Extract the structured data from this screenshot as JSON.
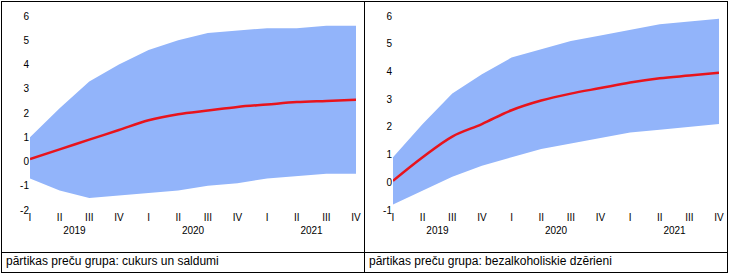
{
  "chart_data": [
    {
      "type": "line",
      "title": "pārtikas preču grupa: cukurs un saldumi",
      "categories": [
        "I",
        "II",
        "III",
        "IV",
        "I",
        "II",
        "III",
        "IV",
        "I",
        "II",
        "III",
        "IV"
      ],
      "years": [
        {
          "label": "2019",
          "count": 4
        },
        {
          "label": "2020",
          "count": 4
        },
        {
          "label": "2021",
          "count": 4
        }
      ],
      "ylim": [
        -2,
        6
      ],
      "yticks": [
        -2,
        -1,
        0,
        1,
        2,
        3,
        4,
        5,
        6
      ],
      "grid": false,
      "series": [
        {
          "type": "band",
          "color": "#92b4fa",
          "lower": [
            -0.7,
            -1.2,
            -1.5,
            -1.4,
            -1.3,
            -1.2,
            -1.0,
            -0.9,
            -0.7,
            -0.6,
            -0.5,
            -0.5
          ],
          "upper": [
            1.0,
            2.2,
            3.3,
            4.0,
            4.6,
            5.0,
            5.3,
            5.4,
            5.5,
            5.5,
            5.6,
            5.6
          ]
        },
        {
          "type": "line",
          "color": "#e8141c",
          "values": [
            0.1,
            0.5,
            0.9,
            1.3,
            1.7,
            1.95,
            2.1,
            2.25,
            2.35,
            2.45,
            2.5,
            2.55
          ]
        }
      ]
    },
    {
      "type": "line",
      "title": "pārtikas preču grupa: bezalkoholiskie dzērieni",
      "categories": [
        "I",
        "II",
        "III",
        "IV",
        "I",
        "II",
        "III",
        "IV",
        "I",
        "II",
        "III",
        "IV"
      ],
      "years": [
        {
          "label": "2019",
          "count": 4
        },
        {
          "label": "2020",
          "count": 4
        },
        {
          "label": "2021",
          "count": 4
        }
      ],
      "ylim": [
        -1,
        6
      ],
      "yticks": [
        -1,
        0,
        1,
        2,
        3,
        4,
        5,
        6
      ],
      "grid": false,
      "series": [
        {
          "type": "band",
          "color": "#92b4fa",
          "lower": [
            -0.8,
            -0.3,
            0.2,
            0.6,
            0.9,
            1.2,
            1.4,
            1.6,
            1.8,
            1.9,
            2.0,
            2.1
          ],
          "upper": [
            0.9,
            2.1,
            3.2,
            3.9,
            4.5,
            4.8,
            5.1,
            5.3,
            5.5,
            5.7,
            5.8,
            5.9
          ]
        },
        {
          "type": "line",
          "color": "#e8141c",
          "values": [
            0.05,
            0.9,
            1.65,
            2.1,
            2.6,
            2.95,
            3.2,
            3.4,
            3.6,
            3.75,
            3.85,
            3.95
          ]
        }
      ]
    }
  ]
}
